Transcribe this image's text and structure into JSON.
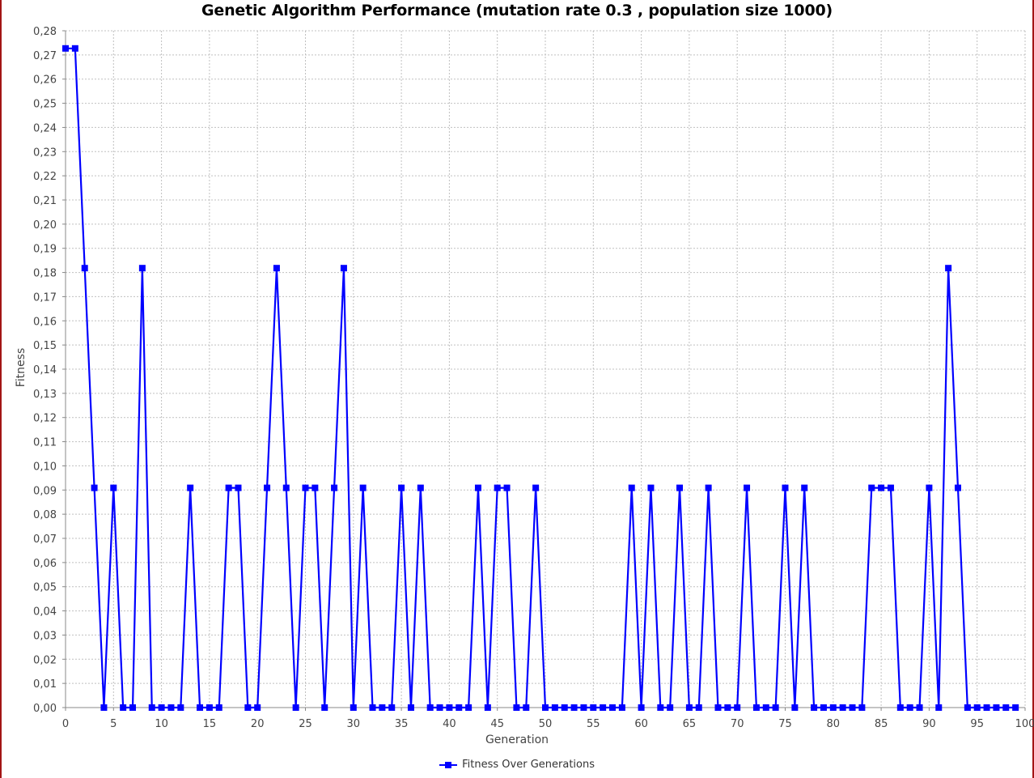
{
  "colors": {
    "series": "#0000ff",
    "grid": "#c0c0c0",
    "axis": "#888888",
    "frame": "#a31515"
  },
  "chart_data": {
    "type": "line",
    "title": "Genetic Algorithm Performance (mutation rate 0.3 , population size 1000)",
    "xlabel": "Generation",
    "ylabel": "Fitness",
    "xlim": [
      0,
      100
    ],
    "ylim": [
      0,
      0.28
    ],
    "x_ticks": [
      "0",
      "5",
      "10",
      "15",
      "20",
      "25",
      "30",
      "35",
      "40",
      "45",
      "50",
      "55",
      "60",
      "65",
      "70",
      "75",
      "80",
      "85",
      "90",
      "95",
      "100"
    ],
    "y_ticks": [
      "0,00",
      "0,01",
      "0,02",
      "0,03",
      "0,04",
      "0,05",
      "0,06",
      "0,07",
      "0,08",
      "0,09",
      "0,10",
      "0,11",
      "0,12",
      "0,13",
      "0,14",
      "0,15",
      "0,16",
      "0,17",
      "0,18",
      "0,19",
      "0,20",
      "0,21",
      "0,22",
      "0,23",
      "0,24",
      "0,25",
      "0,26",
      "0,27",
      "0,28"
    ],
    "grid": true,
    "legend_position": "bottom-center",
    "series": [
      {
        "name": "Fitness Over Generations",
        "x": [
          0,
          1,
          2,
          3,
          4,
          5,
          6,
          7,
          8,
          9,
          10,
          11,
          12,
          13,
          14,
          15,
          16,
          17,
          18,
          19,
          20,
          21,
          22,
          23,
          24,
          25,
          26,
          27,
          28,
          29,
          30,
          31,
          32,
          33,
          34,
          35,
          36,
          37,
          38,
          39,
          40,
          41,
          42,
          43,
          44,
          45,
          46,
          47,
          48,
          49,
          50,
          51,
          52,
          53,
          54,
          55,
          56,
          57,
          58,
          59,
          60,
          61,
          62,
          63,
          64,
          65,
          66,
          67,
          68,
          69,
          70,
          71,
          72,
          73,
          74,
          75,
          76,
          77,
          78,
          79,
          80,
          81,
          82,
          83,
          84,
          85,
          86,
          87,
          88,
          89,
          90,
          91,
          92,
          93,
          94,
          95,
          96,
          97,
          98,
          99
        ],
        "values": [
          0.2727,
          0.2727,
          0.1818,
          0.0909,
          0,
          0.0909,
          0,
          0,
          0.1818,
          0,
          0,
          0,
          0,
          0.0909,
          0,
          0,
          0,
          0.0909,
          0.0909,
          0,
          0,
          0.0909,
          0.1818,
          0.0909,
          0,
          0.0909,
          0.0909,
          0,
          0.0909,
          0.1818,
          0,
          0.0909,
          0,
          0,
          0,
          0.0909,
          0,
          0.0909,
          0,
          0,
          0,
          0,
          0,
          0.0909,
          0,
          0.0909,
          0.0909,
          0,
          0,
          0.0909,
          0,
          0,
          0,
          0,
          0,
          0,
          0,
          0,
          0,
          0.0909,
          0,
          0.0909,
          0,
          0,
          0.0909,
          0,
          0,
          0.0909,
          0,
          0,
          0,
          0.0909,
          0,
          0,
          0,
          0.0909,
          0,
          0.0909,
          0,
          0,
          0,
          0,
          0,
          0,
          0.0909,
          0.0909,
          0.0909,
          0,
          0,
          0,
          0.0909,
          0,
          0.1818,
          0.0909,
          0,
          0,
          0,
          0,
          0,
          0
        ]
      }
    ]
  }
}
